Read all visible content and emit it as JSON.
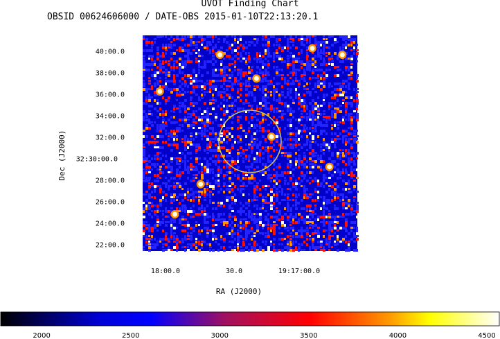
{
  "title": "UVOT Finding Chart",
  "subtitle": "OBSID 00624606000 / DATE-OBS 2015-01-10T22:13:20.1",
  "chart_data": [
    {
      "type": "heatmap",
      "title": "UVOT Finding Chart",
      "xlabel": "RA (J2000)",
      "ylabel": "Dec (J2000)",
      "x_ticks": [
        "18:00.0",
        "30.0",
        "19:17:00.0"
      ],
      "y_ticks": [
        "40:00.0",
        "38:00.0",
        "36:00.0",
        "34:00.0",
        "32:00.0",
        "32:30:00.0",
        "28:00.0",
        "26:00.0",
        "24:00.0",
        "22:00.0"
      ],
      "marker": {
        "shape": "circle",
        "color": "#d4c84a"
      },
      "colors": {
        "dark": "#0000c8",
        "blue": "#2323ff",
        "red": "#ff1010",
        "orange": "#ff9000",
        "yellow": "#ffff40",
        "white": "#ffffe8"
      },
      "grid": false
    },
    {
      "type": "colorbar",
      "ticks": [
        "2000",
        "2500",
        "3000",
        "3500",
        "4000",
        "4500"
      ],
      "range": [
        1770,
        4570
      ],
      "colormap": [
        "#000000",
        "#0000ff",
        "#ff0000",
        "#ffff00",
        "#ffffff"
      ]
    }
  ]
}
